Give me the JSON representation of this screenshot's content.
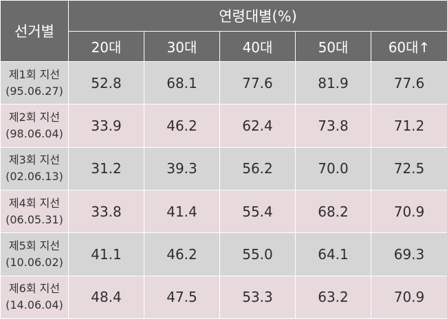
{
  "header": {
    "row_label": "선거별",
    "group_label": "연령대별(%)",
    "age_groups": [
      "20대",
      "30대",
      "40대",
      "50대",
      "60대↑"
    ]
  },
  "rows": [
    {
      "name": "제1회 지선",
      "date": "(95.06.27)",
      "values": [
        "52.8",
        "68.1",
        "77.6",
        "81.9",
        "77.6"
      ]
    },
    {
      "name": "제2회 지선",
      "date": "(98.06.04)",
      "values": [
        "33.9",
        "46.2",
        "62.4",
        "73.8",
        "71.2"
      ]
    },
    {
      "name": "제3회 지선",
      "date": "(02.06.13)",
      "values": [
        "31.2",
        "39.3",
        "56.2",
        "70.0",
        "72.5"
      ]
    },
    {
      "name": "제4회 지선",
      "date": "(06.05.31)",
      "values": [
        "33.8",
        "41.4",
        "55.4",
        "68.2",
        "70.9"
      ]
    },
    {
      "name": "제5회 지선",
      "date": "(10.06.02)",
      "values": [
        "41.1",
        "46.2",
        "55.0",
        "64.1",
        "69.3"
      ]
    },
    {
      "name": "제6회 지선",
      "date": "(14.06.04)",
      "values": [
        "48.4",
        "47.5",
        "53.3",
        "63.2",
        "70.9"
      ]
    }
  ]
}
